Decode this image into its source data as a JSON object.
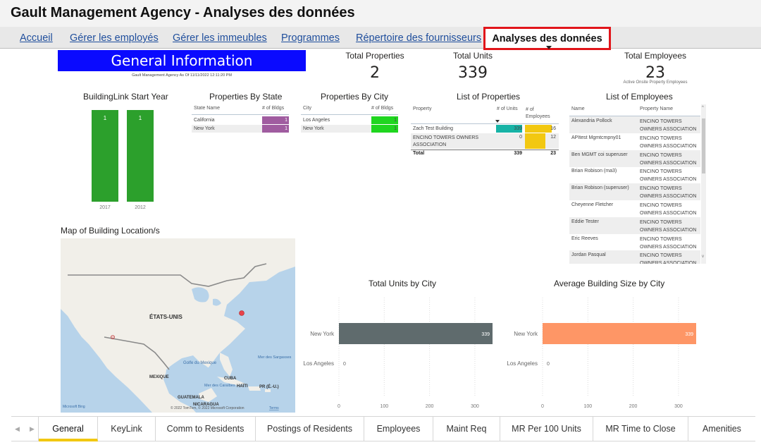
{
  "title": "Gault Management Agency - Analyses des données",
  "nav": [
    {
      "label": "Accueil"
    },
    {
      "label": "Gérer les employés"
    },
    {
      "label": "Gérer les immeubles"
    },
    {
      "label": "Programmes"
    },
    {
      "label": "Répertoire des fournisseurs"
    },
    {
      "label": "Analyses des données"
    }
  ],
  "banner": {
    "title": "General Information",
    "subtitle": "Gault Management Agency As Of 11/11/2022 12:11:20 PM"
  },
  "kpis": {
    "total_properties": {
      "label": "Total Properties",
      "value": "2"
    },
    "total_units": {
      "label": "Total Units",
      "value": "339"
    },
    "total_employees": {
      "label": "Total Employees",
      "value": "23",
      "sub": "Active Onsite Property Employees"
    }
  },
  "start_year": {
    "title": "BuildingLink Start Year",
    "chart_data": {
      "type": "bar",
      "categories": [
        "2017",
        "2012"
      ],
      "values": [
        1,
        1
      ],
      "colors": [
        "#2ca02c",
        "#2ca02c"
      ]
    }
  },
  "by_state": {
    "title": "Properties By State",
    "headers": [
      "State Name",
      "# of Bldgs"
    ],
    "rows": [
      {
        "name": "California",
        "value": "1"
      },
      {
        "name": "New York",
        "value": "1"
      }
    ],
    "bar_color": "#a05ca0"
  },
  "by_city": {
    "title": "Properties By City",
    "headers": [
      "City",
      "# of Bldgs"
    ],
    "rows": [
      {
        "name": "Los Angeles",
        "value": "1"
      },
      {
        "name": "New York",
        "value": "1"
      }
    ],
    "bar_color": "#1fd61f"
  },
  "properties": {
    "title": "List of Properties",
    "headers": [
      "Property",
      "# of Units",
      "# of Employees"
    ],
    "rows": [
      {
        "name": "Zach Test Building",
        "units": "339",
        "employees": "16"
      },
      {
        "name": "ENCINO TOWERS OWNERS ASSOCIATION",
        "units": "0",
        "employees": "12"
      }
    ],
    "total": {
      "label": "Total",
      "units": "339",
      "employees": "23"
    },
    "units_color": "#17b3a6",
    "emp_color": "#f2c811"
  },
  "employees": {
    "title": "List of Employees",
    "headers": [
      "Name",
      "Property Name"
    ],
    "rows": [
      {
        "name": "Alexandria Pollock",
        "property": "ENCINO TOWERS OWNERS ASSOCIATION"
      },
      {
        "name": "APItest Mgmtcmpny01",
        "property": "ENCINO TOWERS OWNERS ASSOCIATION"
      },
      {
        "name": "Ben MGMT coi superuser",
        "property": "ENCINO TOWERS OWNERS ASSOCIATION"
      },
      {
        "name": "Brian Robison (ma3)",
        "property": "ENCINO TOWERS OWNERS ASSOCIATION"
      },
      {
        "name": "Brian Robison (superuser)",
        "property": "ENCINO TOWERS OWNERS ASSOCIATION"
      },
      {
        "name": "Cheyenne Fletcher",
        "property": "ENCINO TOWERS OWNERS ASSOCIATION"
      },
      {
        "name": "Eddie Tester",
        "property": "ENCINO TOWERS OWNERS ASSOCIATION"
      },
      {
        "name": "Eric Reeves",
        "property": "ENCINO TOWERS OWNERS ASSOCIATION"
      },
      {
        "name": "Jordan Pasqual",
        "property": "ENCINO TOWERS OWNERS ASSOCIATION"
      }
    ]
  },
  "map": {
    "title": "Map of Building Location/s",
    "labels": {
      "usa": "ÉTATS-UNIS",
      "gulf": "Golfe du Mexique",
      "mexico": "MEXIQUE",
      "cuba": "CUBA",
      "haiti": "HAÏTI",
      "pr": "PR (É.-U.)",
      "caribbean": "Mer des Caraïbes",
      "sargasso": "Mer des Sargasses",
      "guatemala": "GUATEMALA",
      "nicaragua": "NICARAGUA"
    },
    "attribution": "© 2022 TomTom, © 2022 Microsoft Corporation",
    "terms": "Terms",
    "brand": "Microsoft Bing",
    "marker_color": "#e8434a"
  },
  "units_by_city": {
    "title": "Total Units by City",
    "chart_data": {
      "type": "bar",
      "orientation": "horizontal",
      "categories": [
        "New York",
        "Los Angeles"
      ],
      "values": [
        339,
        0
      ],
      "xticks": [
        0,
        100,
        200,
        300
      ],
      "xlim": [
        0,
        339
      ],
      "color": "#5f6b6d"
    }
  },
  "avg_size_by_city": {
    "title": "Average Building Size by City",
    "chart_data": {
      "type": "bar",
      "orientation": "horizontal",
      "categories": [
        "New York",
        "Los Angeles"
      ],
      "values": [
        339,
        0
      ],
      "xticks": [
        0,
        100,
        200,
        300
      ],
      "xlim": [
        0,
        339
      ],
      "color": "#fe9666"
    }
  },
  "tabs": [
    {
      "label": "General"
    },
    {
      "label": "KeyLink"
    },
    {
      "label": "Comm to Residents"
    },
    {
      "label": "Postings of Residents"
    },
    {
      "label": "Employees"
    },
    {
      "label": "Maint Req"
    },
    {
      "label": "MR Per 100 Units"
    },
    {
      "label": "MR Time to Close"
    },
    {
      "label": "Amenities"
    }
  ]
}
